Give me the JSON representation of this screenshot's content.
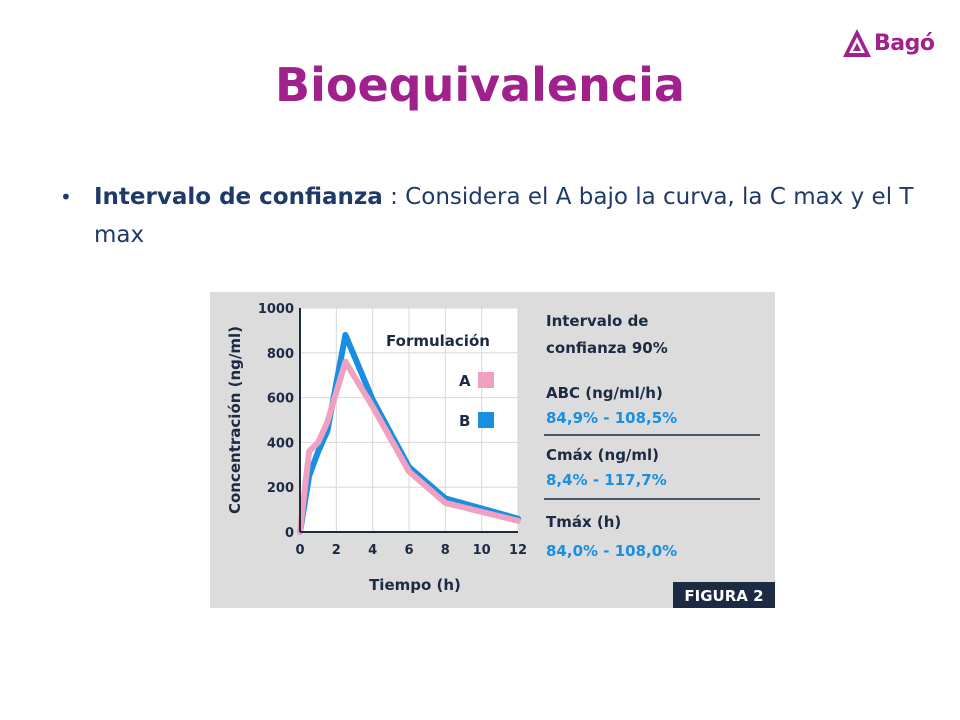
{
  "brand": {
    "name": "Bagó",
    "color": "#a0208c"
  },
  "slide": {
    "title": "Bioequivalencia",
    "bullet": {
      "lead": "Intervalo de confianza",
      "text": " : Considera el A bajo la curva, la C max y el T max"
    }
  },
  "chart_data": {
    "type": "line",
    "title": "",
    "xlabel": "Tiempo (h)",
    "ylabel": "Concentración (ng/ml)",
    "xlim": [
      0,
      12
    ],
    "ylim": [
      0,
      1000
    ],
    "x_ticks": [
      0,
      2,
      4,
      6,
      8,
      10,
      12
    ],
    "y_ticks": [
      0,
      200,
      400,
      600,
      800,
      1000
    ],
    "grid": true,
    "legend_title": "Formulación",
    "legend_position": "top-right",
    "series": [
      {
        "name": "A",
        "color": "#f0a0c0",
        "x": [
          0,
          0.5,
          1,
          1.5,
          2.5,
          4,
          6,
          8,
          12
        ],
        "y": [
          0,
          360,
          400,
          490,
          760,
          560,
          270,
          130,
          50
        ]
      },
      {
        "name": "B",
        "color": "#1a8ee0",
        "x": [
          0,
          0.5,
          1,
          1.5,
          2.5,
          4,
          6,
          8,
          12
        ],
        "y": [
          0,
          250,
          360,
          450,
          880,
          590,
          290,
          150,
          60
        ]
      }
    ],
    "side_panel": {
      "heading_line1": "Intervalo de",
      "heading_line2": "confianza 90%",
      "metrics": [
        {
          "label": "ABC (ng/ml/h)",
          "value": "84,9% - 108,5%"
        },
        {
          "label": "Cmáx (ng/ml)",
          "value": "8,4% - 117,7%"
        },
        {
          "label": "Tmáx (h)",
          "value": "84,0% - 108,0%"
        }
      ],
      "figure_label": "FIGURA 2"
    },
    "colors": {
      "text_dark": "#1c2a44",
      "value_blue": "#1a8ee0",
      "plot_bg": "#ffffff",
      "figure_bg": "#dcdcdc",
      "grid": "#d8d8d8"
    }
  }
}
